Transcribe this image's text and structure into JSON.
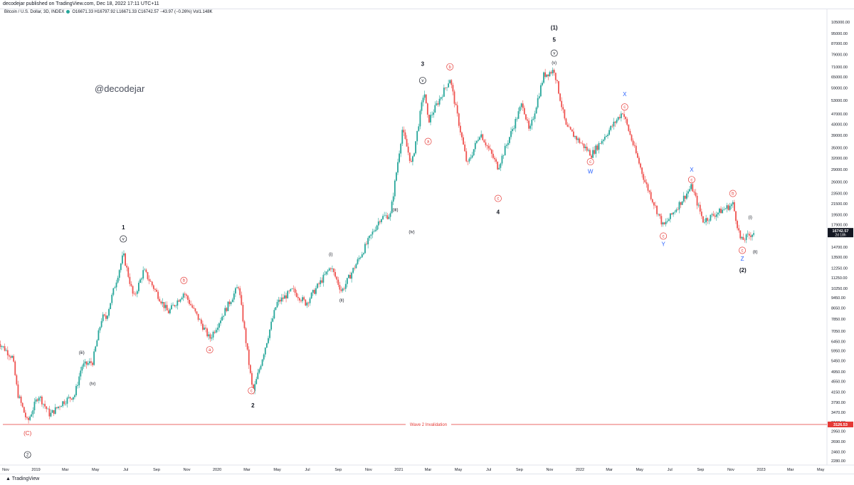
{
  "header": {
    "publish_text": "decodejar published on TradingView.com, Dec 18, 2022 17:11 UTC+11"
  },
  "legend": {
    "symbol": "Bitcoin / U.S. Dollar, 3D, INDEX",
    "ohlc": "O16671.33 H16797.92 L16671.33 C16742.57 −43.97 (−0.26%) Vol1.148K"
  },
  "watermark": "@decodejar",
  "footer": {
    "brand": "TradingView"
  },
  "colors": {
    "up": "#26a69a",
    "down": "#ef5350",
    "label_red": "#e53935",
    "label_blue": "#2962ff",
    "label_black": "#131722",
    "price_tag": "#131722",
    "invalidation": "#e53935"
  },
  "chart_data": {
    "type": "candlestick",
    "title": "Bitcoin / U.S. Dollar, 3D, INDEX",
    "y_scale": "log",
    "y_ticks": [
      "105000.00",
      "95000.00",
      "87000.00",
      "79000.00",
      "71000.00",
      "65000.00",
      "59000.00",
      "53000.00",
      "47000.00",
      "43000.00",
      "39000.00",
      "35000.00",
      "32000.00",
      "29000.00",
      "26000.00",
      "23500.00",
      "21500.00",
      "19500.00",
      "17900.00",
      "16300.00",
      "14700.00",
      "13500.00",
      "12250.00",
      "11250.00",
      "10250.00",
      "9450.00",
      "8650.00",
      "7850.00",
      "7050.00",
      "6450.00",
      "5950.00",
      "5450.00",
      "4950.00",
      "4550.00",
      "4150.00",
      "3790.00",
      "3470.00",
      "3190.00",
      "2950.00",
      "2690.00",
      "2460.00",
      "2280.00"
    ],
    "x_ticks": [
      "Nov",
      "2019",
      "Mar",
      "May",
      "Jul",
      "Sep",
      "Nov",
      "2020",
      "Mar",
      "May",
      "Jul",
      "Sep",
      "Nov",
      "2021",
      "Mar",
      "May",
      "Jul",
      "Sep",
      "Nov",
      "2022",
      "Mar",
      "May",
      "Jul",
      "Sep",
      "Nov",
      "2023",
      "Mar",
      "May"
    ],
    "last_price": {
      "value": "16742.57",
      "countdown": "2d 18h"
    },
    "invalidation": {
      "label": "Wave 2 Invalidation",
      "value": "3126.53",
      "price": 3126.53
    },
    "price_path": [
      [
        "2018-10-15",
        6500
      ],
      [
        "2018-11-15",
        5600
      ],
      [
        "2018-11-25",
        4100
      ],
      [
        "2018-12-15",
        3180
      ],
      [
        "2019-01-06",
        4050
      ],
      [
        "2019-01-29",
        3400
      ],
      [
        "2019-02-24",
        3800
      ],
      [
        "2019-03-20",
        4050
      ],
      [
        "2019-04-03",
        5200
      ],
      [
        "2019-04-25",
        5400
      ],
      [
        "2019-05-14",
        8000
      ],
      [
        "2019-05-22",
        7900
      ],
      [
        "2019-06-26",
        13800
      ],
      [
        "2019-07-17",
        9400
      ],
      [
        "2019-08-06",
        12000
      ],
      [
        "2019-09-24",
        8300
      ],
      [
        "2019-10-26",
        9900
      ],
      [
        "2019-12-17",
        6600
      ],
      [
        "2020-02-13",
        10500
      ],
      [
        "2020-03-13",
        4100
      ],
      [
        "2020-04-30",
        9000
      ],
      [
        "2020-06-01",
        10100
      ],
      [
        "2020-06-28",
        9000
      ],
      [
        "2020-08-17",
        12400
      ],
      [
        "2020-09-08",
        10000
      ],
      [
        "2020-11-25",
        19000
      ],
      [
        "2020-12-15",
        19500
      ],
      [
        "2021-01-08",
        41000
      ],
      [
        "2021-01-27",
        30000
      ],
      [
        "2021-02-21",
        58000
      ],
      [
        "2021-03-01",
        44000
      ],
      [
        "2021-04-14",
        64000
      ],
      [
        "2021-05-19",
        30000
      ],
      [
        "2021-06-14",
        40000
      ],
      [
        "2021-07-20",
        29500
      ],
      [
        "2021-09-07",
        52000
      ],
      [
        "2021-09-21",
        40000
      ],
      [
        "2021-10-20",
        66000
      ],
      [
        "2021-11-10",
        69000
      ],
      [
        "2021-12-04",
        42000
      ],
      [
        "2022-01-24",
        33000
      ],
      [
        "2022-03-28",
        48000
      ],
      [
        "2022-05-12",
        26000
      ],
      [
        "2022-06-18",
        17600
      ],
      [
        "2022-08-14",
        25000
      ],
      [
        "2022-09-06",
        18500
      ],
      [
        "2022-11-05",
        21400
      ],
      [
        "2022-11-21",
        15500
      ],
      [
        "2022-12-17",
        16742.57
      ]
    ],
    "wave_labels": [
      {
        "text": "1",
        "date": "2019-06-26",
        "price": 17500,
        "style": "plain"
      },
      {
        "text": "v",
        "date": "2019-06-26",
        "price": 15800,
        "style": "circle"
      },
      {
        "text": "2",
        "date": "2020-03-13",
        "price": 3700,
        "style": "plain"
      },
      {
        "text": "c",
        "date": "2020-03-10",
        "price": 4200,
        "style": "circle-red"
      },
      {
        "text": "3",
        "date": "2021-02-18",
        "price": 73000,
        "style": "plain"
      },
      {
        "text": "v",
        "date": "2021-02-18",
        "price": 63000,
        "style": "circle"
      },
      {
        "text": "4",
        "date": "2021-07-20",
        "price": 20000,
        "style": "plain"
      },
      {
        "text": "(1)",
        "date": "2021-11-10",
        "price": 100000,
        "style": "plain"
      },
      {
        "text": "5",
        "date": "2021-11-10",
        "price": 90000,
        "style": "plain"
      },
      {
        "text": "v",
        "date": "2021-11-10",
        "price": 80000,
        "style": "circle"
      },
      {
        "text": "(v)",
        "date": "2021-11-10",
        "price": 74000,
        "style": "small"
      },
      {
        "text": "(2)",
        "date": "2022-11-25",
        "price": 12050,
        "style": "plain"
      },
      {
        "text": "Z",
        "date": "2022-11-24",
        "price": 13300,
        "style": "blue"
      },
      {
        "text": "c",
        "date": "2022-11-24",
        "price": 14300,
        "style": "circle-red"
      },
      {
        "text": "Y",
        "date": "2022-06-18",
        "price": 15100,
        "style": "blue"
      },
      {
        "text": "c",
        "date": "2022-06-18",
        "price": 16200,
        "style": "circle-red"
      },
      {
        "text": "X",
        "date": "2022-04-01",
        "price": 56000,
        "style": "blue"
      },
      {
        "text": "c",
        "date": "2022-04-01",
        "price": 50000,
        "style": "circle-red"
      },
      {
        "text": "X",
        "date": "2022-08-14",
        "price": 29000,
        "style": "blue"
      },
      {
        "text": "c",
        "date": "2022-08-14",
        "price": 26500,
        "style": "circle-red"
      },
      {
        "text": "W",
        "date": "2022-01-22",
        "price": 28500,
        "style": "blue"
      },
      {
        "text": "c",
        "date": "2022-01-22",
        "price": 31000,
        "style": "circle-red"
      },
      {
        "text": "(C)",
        "date": "2018-12-15",
        "price": 2900,
        "style": "red"
      },
      {
        "text": "2",
        "date": "2018-12-15",
        "price": 2400,
        "style": "circle"
      },
      {
        "text": "b",
        "date": "2019-10-26",
        "price": 11000,
        "style": "circle-red"
      },
      {
        "text": "a",
        "date": "2019-12-17",
        "price": 6000,
        "style": "circle-red"
      },
      {
        "text": "b",
        "date": "2021-04-14",
        "price": 71000,
        "style": "circle-red"
      },
      {
        "text": "a",
        "date": "2021-03-01",
        "price": 37000,
        "style": "circle-red"
      },
      {
        "text": "c",
        "date": "2021-07-20",
        "price": 22500,
        "style": "circle-red"
      },
      {
        "text": "b",
        "date": "2022-11-05",
        "price": 23500,
        "style": "circle-red"
      },
      {
        "text": "(i)",
        "date": "2022-12-10",
        "price": 19200,
        "style": "small"
      },
      {
        "text": "(ii)",
        "date": "2022-12-20",
        "price": 14200,
        "style": "small"
      },
      {
        "text": "(iii)",
        "date": "2020-12-25",
        "price": 20500,
        "style": "small"
      },
      {
        "text": "(iv)",
        "date": "2021-01-27",
        "price": 16900,
        "style": "small"
      },
      {
        "text": "(iii)",
        "date": "2019-04-03",
        "price": 5900,
        "style": "small"
      },
      {
        "text": "(iv)",
        "date": "2019-04-25",
        "price": 4500,
        "style": "small"
      },
      {
        "text": "(i)",
        "date": "2020-08-17",
        "price": 13900,
        "style": "small"
      },
      {
        "text": "(ii)",
        "date": "2020-09-08",
        "price": 9300,
        "style": "small"
      }
    ]
  }
}
